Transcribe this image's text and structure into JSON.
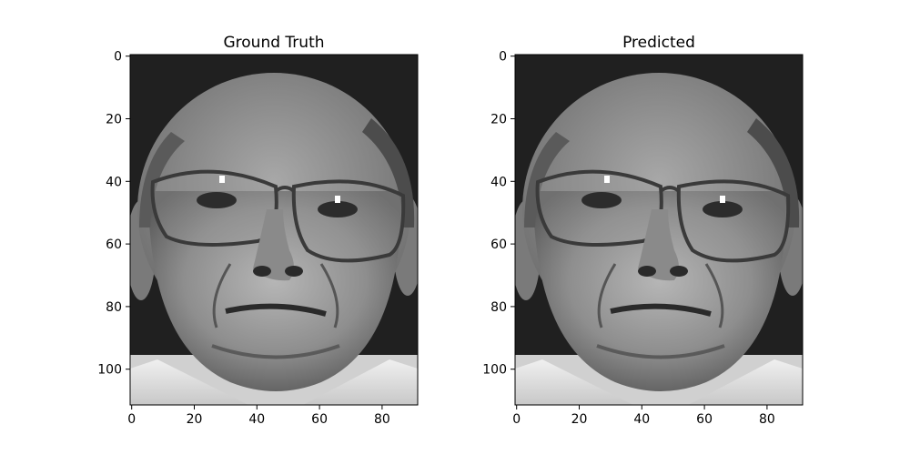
{
  "figure": {
    "background": "#ffffff"
  },
  "panels": [
    {
      "title": "Ground Truth",
      "image": "grayscale face photograph of an older man wearing glasses",
      "x_ticks": [
        "0",
        "20",
        "40",
        "60",
        "80"
      ],
      "y_ticks": [
        "0",
        "20",
        "40",
        "60",
        "80",
        "100"
      ]
    },
    {
      "title": "Predicted",
      "image": "grayscale face photograph of an older man wearing glasses (reconstruction)",
      "x_ticks": [
        "0",
        "20",
        "40",
        "60",
        "80"
      ],
      "y_ticks": [
        "0",
        "20",
        "40",
        "60",
        "80",
        "100"
      ]
    }
  ],
  "colors": {
    "background": "#202020",
    "skin_light": "#b4b4b4",
    "skin_mid": "#8c8c8c",
    "shadow": "#3c3c3c",
    "collar": "#e6e6e6"
  }
}
